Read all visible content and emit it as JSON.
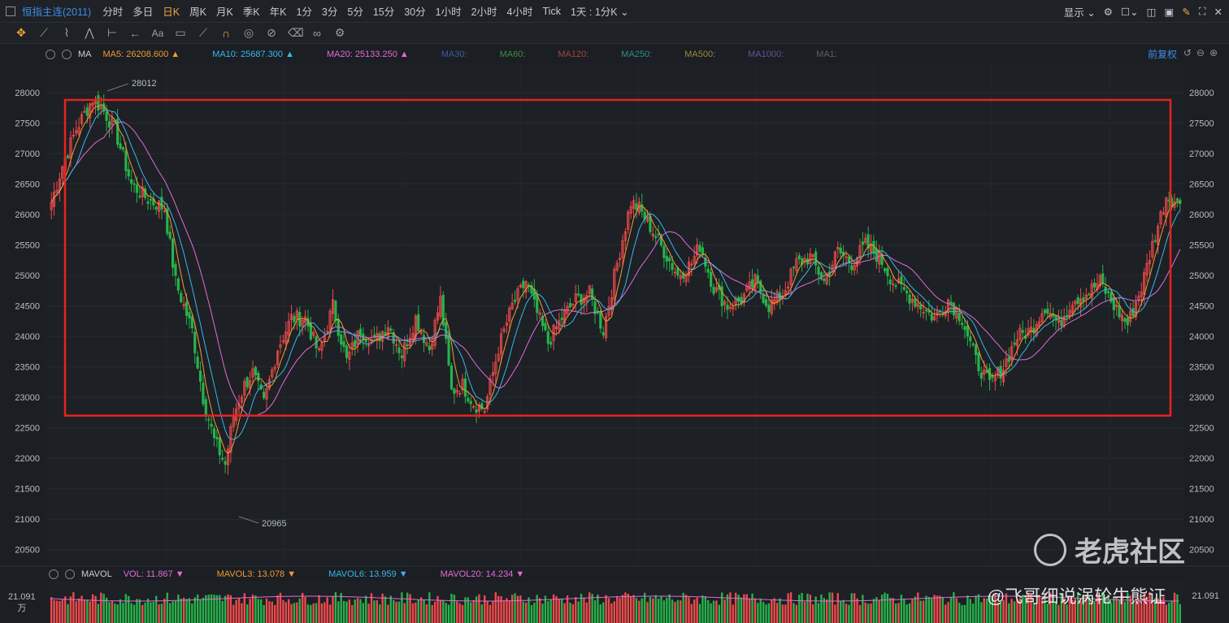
{
  "header": {
    "symbol": "恒指主连(2011)",
    "timeframes": [
      "分时",
      "多日",
      "日K",
      "周K",
      "月K",
      "季K",
      "年K",
      "1分",
      "3分",
      "5分",
      "15分",
      "30分",
      "1小时",
      "2小时",
      "4小时",
      "Tick"
    ],
    "active_timeframe": "日K",
    "interval_select": "1天 : 1分K ⌄",
    "display_label": "显示 ⌄"
  },
  "toolbar": {
    "tools": [
      "move-icon",
      "line-icon",
      "brush-icon",
      "pattern-icon",
      "measure-icon",
      "arrow-icon",
      "text-icon",
      "note-icon",
      "pen-icon",
      "magnet-icon",
      "lock-icon",
      "eye-off-icon",
      "trash-icon",
      "link-icon",
      "settings-icon"
    ]
  },
  "ma_legend": {
    "label": "MA",
    "items": [
      {
        "text": "MA5: 26208.600 ▲",
        "color": "#f29a36"
      },
      {
        "text": "MA10: 25687.300 ▲",
        "color": "#38b8e8"
      },
      {
        "text": "MA20: 25133.250 ▲",
        "color": "#e36bd9"
      },
      {
        "text": "MA30:",
        "color": "#3a5f9e"
      },
      {
        "text": "MA60:",
        "color": "#3f8f4a"
      },
      {
        "text": "MA120:",
        "color": "#a8443a"
      },
      {
        "text": "MA250:",
        "color": "#2e8f8a"
      },
      {
        "text": "MA500:",
        "color": "#9c8a3a"
      },
      {
        "text": "MA1000:",
        "color": "#6a4f9e"
      },
      {
        "text": "MA1:",
        "color": "#5a5f66"
      }
    ],
    "adjust_label": "前复权"
  },
  "vol_legend": {
    "label": "MAVOL",
    "items": [
      {
        "text": "VOL: 11.867 ▼",
        "color": "#e36bd9"
      },
      {
        "text": "MAVOL3: 13.078 ▼",
        "color": "#f29a36"
      },
      {
        "text": "MAVOL6: 13.959 ▼",
        "color": "#38b8e8"
      },
      {
        "text": "MAVOL20: 14.234 ▼",
        "color": "#e36bd9"
      }
    ],
    "axis_value": "21.091",
    "axis_unit": "万",
    "axis_value_right": "21.091"
  },
  "chart_data": {
    "type": "candlestick",
    "y_ticks": [
      28000,
      27500,
      27000,
      26500,
      26000,
      25500,
      25000,
      24500,
      24000,
      23500,
      23000,
      22500,
      22000,
      21500,
      21000,
      20500
    ],
    "ylim": [
      20270,
      28480
    ],
    "high_label": "28012",
    "low_label": "20965",
    "up_color": "#f04a4a",
    "down_color": "#26b34a",
    "annotation_box": {
      "price_top": 27880,
      "price_bottom": 22700,
      "color": "#e8231f"
    },
    "series_colors": {
      "ma5": "#f29a36",
      "ma10": "#38b8e8",
      "ma20": "#e36bd9"
    },
    "anchors": [
      [
        0,
        26200
      ],
      [
        4,
        26800
      ],
      [
        9,
        27400
      ],
      [
        15,
        27900
      ],
      [
        19,
        27700
      ],
      [
        23,
        27400
      ],
      [
        29,
        26500
      ],
      [
        35,
        26250
      ],
      [
        41,
        26100
      ],
      [
        45,
        24900
      ],
      [
        51,
        24100
      ],
      [
        55,
        23000
      ],
      [
        59,
        22300
      ],
      [
        63,
        21900
      ],
      [
        66,
        22700
      ],
      [
        70,
        23200
      ],
      [
        73,
        23400
      ],
      [
        77,
        22900
      ],
      [
        82,
        23800
      ],
      [
        87,
        24300
      ],
      [
        92,
        24300
      ],
      [
        97,
        23700
      ],
      [
        102,
        24500
      ],
      [
        107,
        23600
      ],
      [
        112,
        24100
      ],
      [
        117,
        23900
      ],
      [
        122,
        24200
      ],
      [
        127,
        23700
      ],
      [
        132,
        24300
      ],
      [
        137,
        23800
      ],
      [
        141,
        24600
      ],
      [
        145,
        23100
      ],
      [
        149,
        23200
      ],
      [
        153,
        22900
      ],
      [
        157,
        22800
      ],
      [
        162,
        23800
      ],
      [
        167,
        24500
      ],
      [
        172,
        24900
      ],
      [
        175,
        24500
      ],
      [
        180,
        23900
      ],
      [
        185,
        24300
      ],
      [
        190,
        24600
      ],
      [
        195,
        24700
      ],
      [
        200,
        24100
      ],
      [
        205,
        25200
      ],
      [
        210,
        26200
      ],
      [
        213,
        26100
      ],
      [
        217,
        25800
      ],
      [
        222,
        25400
      ],
      [
        227,
        25000
      ],
      [
        232,
        25200
      ],
      [
        235,
        25500
      ],
      [
        240,
        24800
      ],
      [
        245,
        24500
      ],
      [
        250,
        24600
      ],
      [
        255,
        24900
      ],
      [
        260,
        24500
      ],
      [
        265,
        24700
      ],
      [
        270,
        25200
      ],
      [
        275,
        25300
      ],
      [
        280,
        24900
      ],
      [
        285,
        25400
      ],
      [
        290,
        25200
      ],
      [
        295,
        25500
      ],
      [
        300,
        25300
      ],
      [
        305,
        24900
      ],
      [
        310,
        24700
      ],
      [
        315,
        24500
      ],
      [
        320,
        24300
      ],
      [
        325,
        24600
      ],
      [
        330,
        24300
      ],
      [
        335,
        23600
      ],
      [
        340,
        23200
      ],
      [
        345,
        23500
      ],
      [
        350,
        24000
      ],
      [
        355,
        24100
      ],
      [
        360,
        24500
      ],
      [
        365,
        24200
      ],
      [
        370,
        24600
      ],
      [
        375,
        24700
      ],
      [
        380,
        24900
      ],
      [
        385,
        24500
      ],
      [
        390,
        24200
      ],
      [
        395,
        24800
      ],
      [
        399,
        25500
      ],
      [
        404,
        26300
      ],
      [
        408,
        26200
      ]
    ],
    "n_bars": 410
  }
}
